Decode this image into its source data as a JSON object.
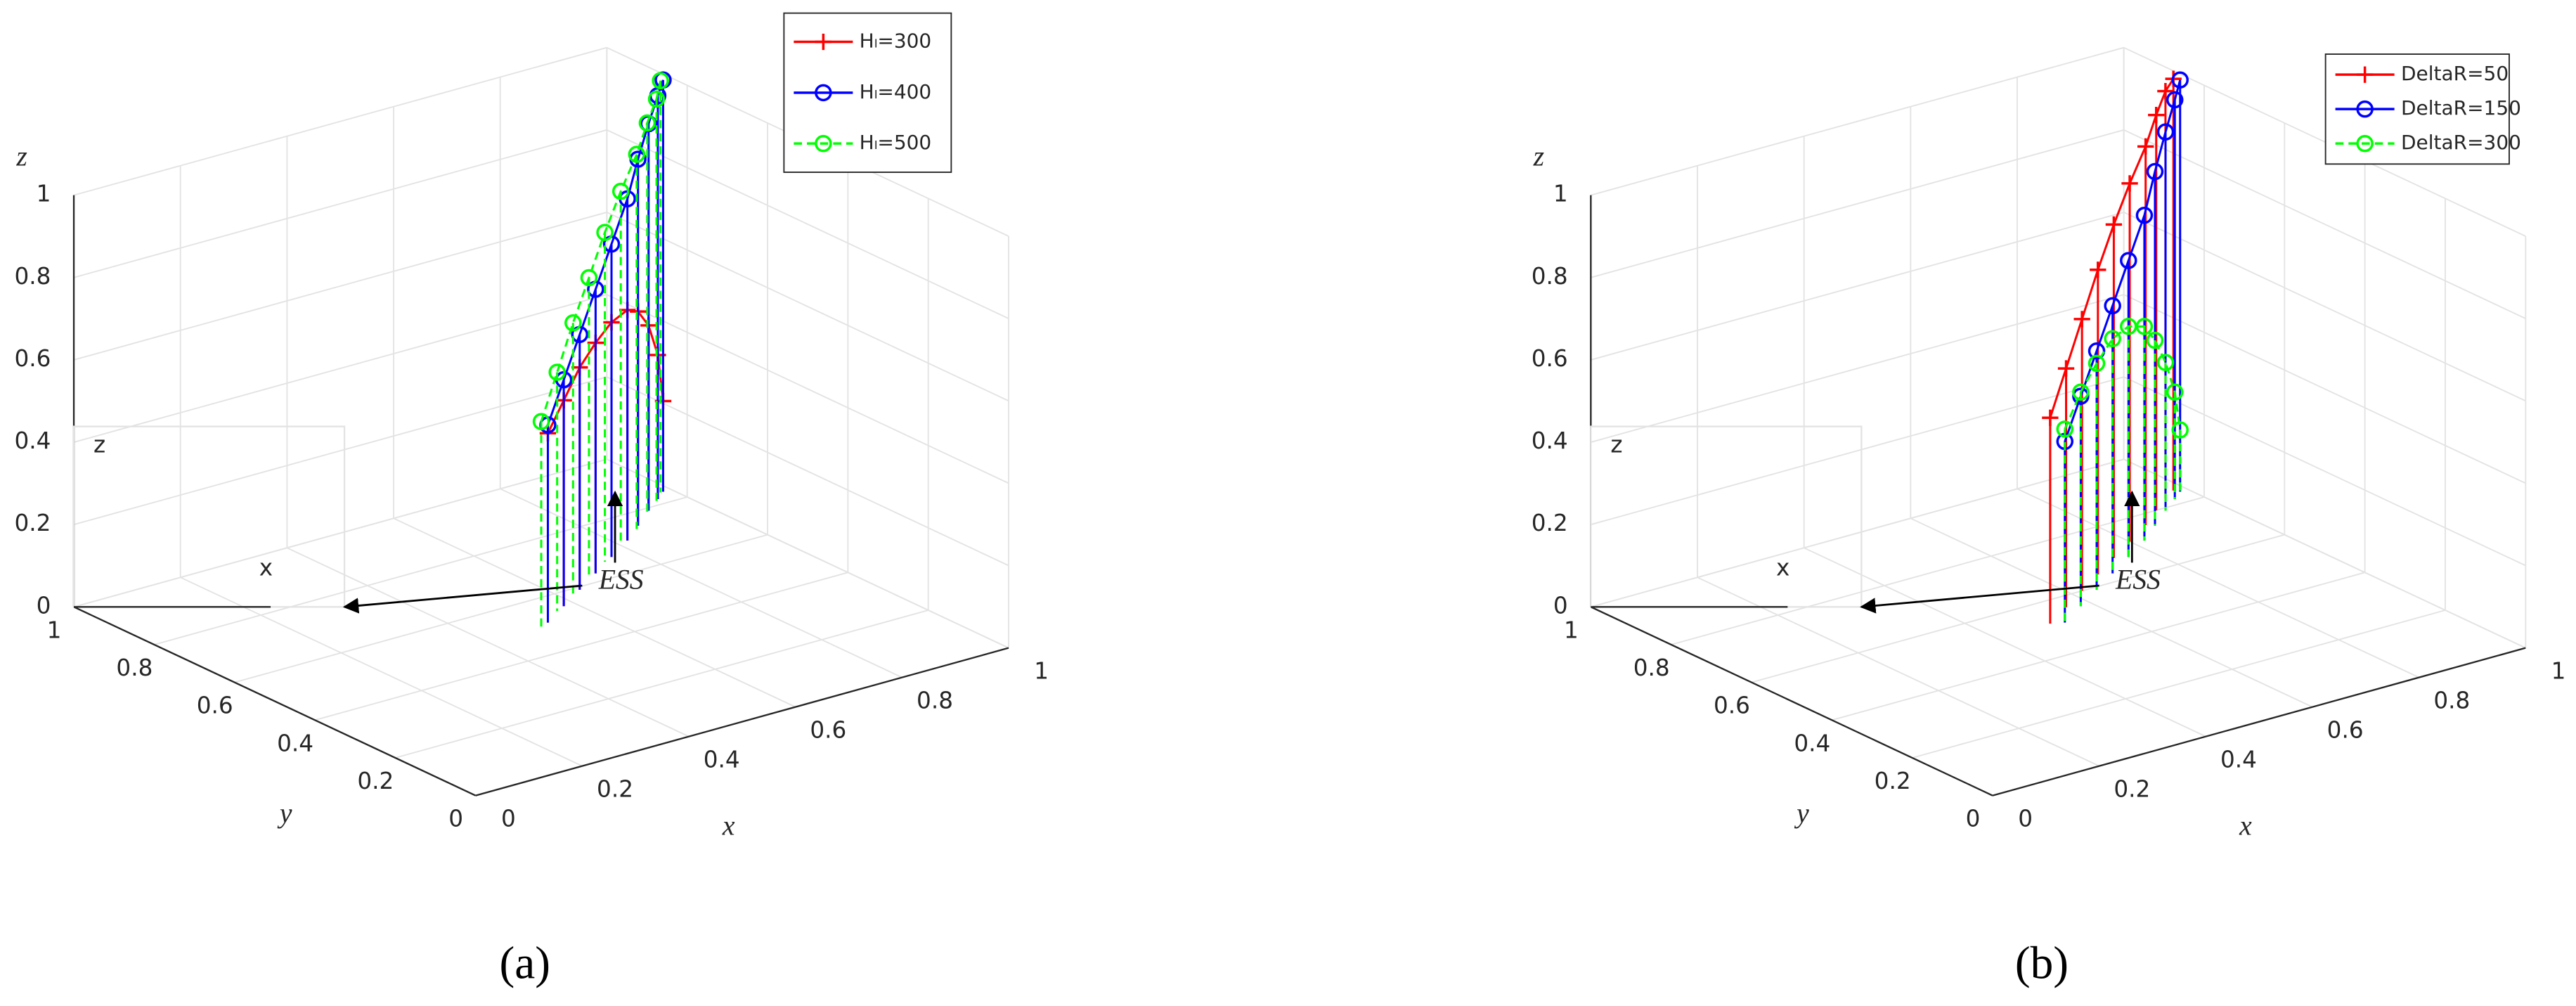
{
  "chart_data": [
    {
      "type": "stem3",
      "caption": "(a)",
      "xlabel": "x",
      "ylabel": "y",
      "zlabel": "z",
      "annotation": "ESS",
      "inset_labels": [
        "z",
        "x"
      ],
      "xlim": [
        0,
        1
      ],
      "ylim": [
        0,
        1
      ],
      "zlim": [
        0,
        1
      ],
      "xticks": [
        0,
        0.2,
        0.4,
        0.6,
        0.8,
        1
      ],
      "yticks": [
        0,
        0.2,
        0.4,
        0.6,
        0.8,
        1
      ],
      "zticks": [
        0,
        0.2,
        0.4,
        0.6,
        0.8,
        1
      ],
      "grid": true,
      "legend": "upper right",
      "series": [
        {
          "name": "Hₗ=300",
          "color": "#ff0000",
          "marker": "plus",
          "linestyle": "solid",
          "x": [
            0.52,
            0.58,
            0.64,
            0.7,
            0.76,
            0.82,
            0.87,
            0.92,
            0.96,
            0.985
          ],
          "y": [
            0.51,
            0.55,
            0.59,
            0.63,
            0.67,
            0.71,
            0.75,
            0.79,
            0.82,
            0.84
          ],
          "z": [
            0.46,
            0.5,
            0.54,
            0.56,
            0.57,
            0.56,
            0.52,
            0.45,
            0.35,
            0.22
          ]
        },
        {
          "name": "Hₗ=400",
          "color": "#0000ff",
          "marker": "circle",
          "linestyle": "solid",
          "x": [
            0.52,
            0.58,
            0.64,
            0.7,
            0.76,
            0.82,
            0.87,
            0.92,
            0.96,
            0.985
          ],
          "y": [
            0.51,
            0.55,
            0.59,
            0.63,
            0.67,
            0.71,
            0.75,
            0.79,
            0.82,
            0.84
          ],
          "z": [
            0.48,
            0.55,
            0.62,
            0.69,
            0.76,
            0.83,
            0.89,
            0.94,
            0.98,
            1.0
          ]
        },
        {
          "name": "Hₗ=500",
          "color": "#00ff00",
          "marker": "circle",
          "linestyle": "dashed",
          "x": [
            0.5,
            0.56,
            0.62,
            0.68,
            0.74,
            0.8,
            0.86,
            0.91,
            0.95,
            0.98
          ],
          "y": [
            0.5,
            0.54,
            0.58,
            0.62,
            0.66,
            0.7,
            0.74,
            0.78,
            0.81,
            0.84
          ],
          "z": [
            0.5,
            0.58,
            0.66,
            0.73,
            0.8,
            0.86,
            0.91,
            0.95,
            0.98,
            1.0
          ]
        }
      ]
    },
    {
      "type": "stem3",
      "caption": "(b)",
      "xlabel": "x",
      "ylabel": "y",
      "zlabel": "z",
      "annotation": "ESS",
      "inset_labels": [
        "z",
        "x"
      ],
      "xlim": [
        0,
        1
      ],
      "ylim": [
        0,
        1
      ],
      "zlim": [
        0,
        1
      ],
      "xticks": [
        0,
        0.2,
        0.4,
        0.6,
        0.8,
        1
      ],
      "yticks": [
        0,
        0.2,
        0.4,
        0.6,
        0.8,
        1
      ],
      "zticks": [
        0,
        0.2,
        0.4,
        0.6,
        0.8,
        1
      ],
      "grid": true,
      "legend": "upper right",
      "series": [
        {
          "name": "DeltaR=50",
          "color": "#ff0000",
          "marker": "plus",
          "linestyle": "solid",
          "x": [
            0.5,
            0.56,
            0.62,
            0.68,
            0.74,
            0.8,
            0.86,
            0.91,
            0.95,
            0.98
          ],
          "y": [
            0.52,
            0.56,
            0.6,
            0.64,
            0.68,
            0.72,
            0.76,
            0.8,
            0.83,
            0.85
          ],
          "z": [
            0.5,
            0.58,
            0.66,
            0.74,
            0.81,
            0.87,
            0.92,
            0.96,
            0.99,
            1.0
          ]
        },
        {
          "name": "DeltaR=150",
          "color": "#0000ff",
          "marker": "circle",
          "linestyle": "solid",
          "x": [
            0.52,
            0.58,
            0.64,
            0.7,
            0.76,
            0.82,
            0.87,
            0.92,
            0.96,
            0.985
          ],
          "y": [
            0.51,
            0.55,
            0.59,
            0.63,
            0.67,
            0.71,
            0.75,
            0.79,
            0.82,
            0.84
          ],
          "z": [
            0.44,
            0.51,
            0.58,
            0.65,
            0.72,
            0.79,
            0.86,
            0.92,
            0.97,
            1.0
          ]
        },
        {
          "name": "DeltaR=300",
          "color": "#00ff00",
          "marker": "circle",
          "linestyle": "dashed",
          "x": [
            0.52,
            0.58,
            0.64,
            0.7,
            0.76,
            0.82,
            0.87,
            0.92,
            0.96,
            0.985
          ],
          "y": [
            0.51,
            0.55,
            0.59,
            0.63,
            0.67,
            0.71,
            0.75,
            0.79,
            0.82,
            0.84
          ],
          "z": [
            0.47,
            0.52,
            0.55,
            0.57,
            0.56,
            0.52,
            0.45,
            0.36,
            0.26,
            0.15
          ]
        }
      ]
    }
  ]
}
